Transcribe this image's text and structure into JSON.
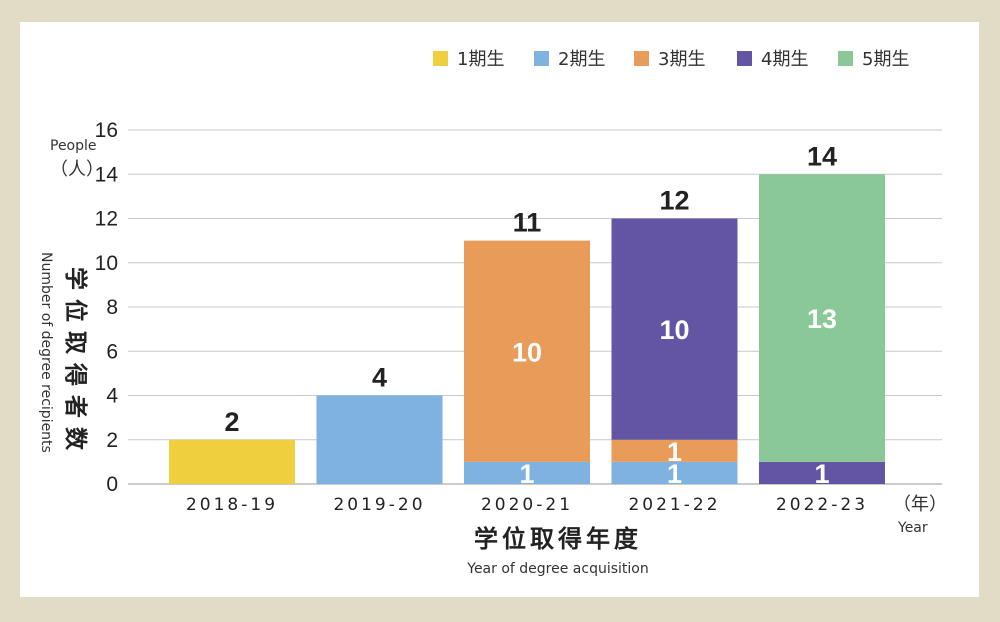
{
  "chart_data": {
    "type": "bar",
    "stacked": true,
    "categories": [
      "2018-19",
      "2019-20",
      "2020-21",
      "2021-22",
      "2022-23"
    ],
    "series": [
      {
        "name": "1期生",
        "color": "#f0cf3f",
        "values": [
          2,
          0,
          0,
          0,
          0
        ]
      },
      {
        "name": "2期生",
        "color": "#7fb2e1",
        "values": [
          0,
          4,
          1,
          1,
          0
        ]
      },
      {
        "name": "3期生",
        "color": "#e99b5a",
        "values": [
          0,
          0,
          10,
          1,
          0
        ]
      },
      {
        "name": "4期生",
        "color": "#6355a4",
        "values": [
          0,
          0,
          0,
          10,
          1
        ]
      },
      {
        "name": "5期生",
        "color": "#8bc897",
        "values": [
          0,
          0,
          0,
          0,
          13
        ]
      }
    ],
    "totals": [
      2,
      4,
      11,
      12,
      14
    ],
    "ylim": [
      0,
      16
    ],
    "yticks": [
      0,
      2,
      4,
      6,
      8,
      10,
      12,
      14,
      16
    ],
    "grid": true,
    "legend_position": "top-right",
    "ylabel_en_unit": "People",
    "ylabel_jp_unit": "（人）",
    "ylabel_jp": "学位取得者数",
    "ylabel_en": "Number of degree recipients",
    "xlabel_jp": "学位取得年度",
    "xlabel_en": "Year of degree acquisition",
    "xunit_jp": "（年）",
    "xunit_en": "Year"
  }
}
